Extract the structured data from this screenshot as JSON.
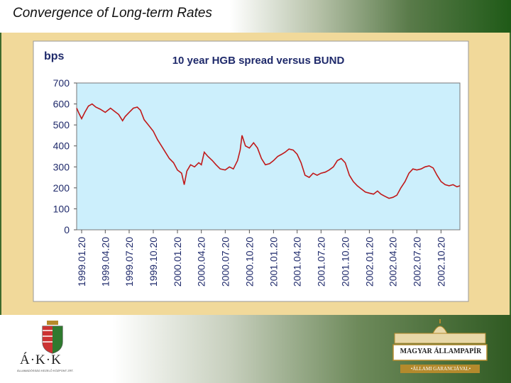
{
  "page": {
    "title": "Convergence of Long-term Rates"
  },
  "logos": {
    "left_letters": "Á·K·K",
    "left_subtext": "ÁLLAMADÓSSÁG KEZELŐ KÖZPONT ZRT.",
    "right_name": "MAGYAR ÁLLAMPAPÍR",
    "right_subtext": "•ÁLLAMI GARANCIÁVAL•"
  },
  "colors": {
    "plot_bg": "#cceffc",
    "line": "#c0191a",
    "panel_bg": "#f1d99a",
    "frame_green": "#3f6b2c"
  },
  "chart_data": {
    "type": "line",
    "title": "10 year HGB spread versus BUND",
    "ylabel": "bps",
    "xlabel": "",
    "ylim": [
      0,
      700
    ],
    "yticks": [
      0,
      100,
      200,
      300,
      400,
      500,
      600,
      700
    ],
    "xticks": [
      "1999.01.20",
      "1999.04.20",
      "1999.07.20",
      "1999.10.20",
      "2000.01.20",
      "2000.04.20",
      "2000.07.20",
      "2000.10.20",
      "2001.01.20",
      "2001.04.20",
      "2001.07.20",
      "2001.10.20",
      "2002.01.20",
      "2002.04.20",
      "2002.07.20",
      "2002.10.20"
    ],
    "x_range": [
      "1999.01.01",
      "2002.12.31"
    ],
    "grid": false,
    "legend": "none",
    "series": [
      {
        "color": "#c0191a",
        "points": [
          [
            "1999.01.01",
            580
          ],
          [
            "1999.01.10",
            555
          ],
          [
            "1999.01.20",
            530
          ],
          [
            "1999.02.01",
            560
          ],
          [
            "1999.02.15",
            590
          ],
          [
            "1999.03.01",
            600
          ],
          [
            "1999.03.15",
            585
          ],
          [
            "1999.04.01",
            575
          ],
          [
            "1999.04.20",
            560
          ],
          [
            "1999.05.10",
            580
          ],
          [
            "1999.05.25",
            565
          ],
          [
            "1999.06.10",
            550
          ],
          [
            "1999.06.25",
            520
          ],
          [
            "1999.07.05",
            540
          ],
          [
            "1999.07.20",
            560
          ],
          [
            "1999.08.05",
            580
          ],
          [
            "1999.08.20",
            585
          ],
          [
            "1999.09.01",
            570
          ],
          [
            "1999.09.15",
            525
          ],
          [
            "1999.10.01",
            500
          ],
          [
            "1999.10.20",
            470
          ],
          [
            "1999.11.05",
            430
          ],
          [
            "1999.11.20",
            400
          ],
          [
            "1999.12.05",
            370
          ],
          [
            "1999.12.20",
            340
          ],
          [
            "2000.01.05",
            320
          ],
          [
            "2000.01.20",
            285
          ],
          [
            "2000.02.05",
            270
          ],
          [
            "2000.02.15",
            215
          ],
          [
            "2000.02.25",
            280
          ],
          [
            "2000.03.10",
            310
          ],
          [
            "2000.03.25",
            300
          ],
          [
            "2000.04.10",
            320
          ],
          [
            "2000.04.20",
            310
          ],
          [
            "2000.05.01",
            370
          ],
          [
            "2000.05.15",
            350
          ],
          [
            "2000.06.01",
            330
          ],
          [
            "2000.06.15",
            310
          ],
          [
            "2000.07.01",
            290
          ],
          [
            "2000.07.20",
            285
          ],
          [
            "2000.08.05",
            300
          ],
          [
            "2000.08.20",
            290
          ],
          [
            "2000.09.05",
            330
          ],
          [
            "2000.09.15",
            380
          ],
          [
            "2000.09.22",
            450
          ],
          [
            "2000.10.05",
            400
          ],
          [
            "2000.10.20",
            390
          ],
          [
            "2000.11.05",
            415
          ],
          [
            "2000.11.20",
            390
          ],
          [
            "2000.12.05",
            340
          ],
          [
            "2000.12.20",
            310
          ],
          [
            "2001.01.05",
            315
          ],
          [
            "2001.01.20",
            330
          ],
          [
            "2001.02.05",
            350
          ],
          [
            "2001.02.20",
            360
          ],
          [
            "2001.03.05",
            370
          ],
          [
            "2001.03.20",
            385
          ],
          [
            "2001.04.05",
            380
          ],
          [
            "2001.04.20",
            360
          ],
          [
            "2001.05.05",
            320
          ],
          [
            "2001.05.20",
            260
          ],
          [
            "2001.06.05",
            250
          ],
          [
            "2001.06.20",
            270
          ],
          [
            "2001.07.05",
            260
          ],
          [
            "2001.07.20",
            270
          ],
          [
            "2001.08.05",
            275
          ],
          [
            "2001.08.20",
            285
          ],
          [
            "2001.09.05",
            300
          ],
          [
            "2001.09.20",
            330
          ],
          [
            "2001.10.05",
            340
          ],
          [
            "2001.10.20",
            320
          ],
          [
            "2001.11.05",
            260
          ],
          [
            "2001.11.20",
            230
          ],
          [
            "2001.12.05",
            210
          ],
          [
            "2001.12.20",
            195
          ],
          [
            "2002.01.05",
            180
          ],
          [
            "2002.01.20",
            175
          ],
          [
            "2002.02.05",
            170
          ],
          [
            "2002.02.20",
            185
          ],
          [
            "2002.03.05",
            170
          ],
          [
            "2002.03.20",
            160
          ],
          [
            "2002.04.05",
            150
          ],
          [
            "2002.04.20",
            155
          ],
          [
            "2002.05.05",
            165
          ],
          [
            "2002.05.20",
            200
          ],
          [
            "2002.06.05",
            230
          ],
          [
            "2002.06.20",
            270
          ],
          [
            "2002.07.05",
            290
          ],
          [
            "2002.07.20",
            285
          ],
          [
            "2002.08.05",
            290
          ],
          [
            "2002.08.20",
            300
          ],
          [
            "2002.09.05",
            305
          ],
          [
            "2002.09.20",
            295
          ],
          [
            "2002.10.05",
            260
          ],
          [
            "2002.10.20",
            230
          ],
          [
            "2002.11.05",
            215
          ],
          [
            "2002.11.20",
            210
          ],
          [
            "2002.12.05",
            215
          ],
          [
            "2002.12.20",
            205
          ],
          [
            "2002.12.31",
            210
          ]
        ]
      }
    ]
  }
}
